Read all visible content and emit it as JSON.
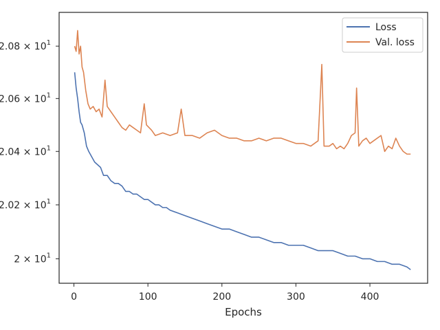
{
  "chart_data": {
    "type": "line",
    "title": "",
    "xlabel": "Epochs",
    "ylabel": "",
    "xlim": [
      -20,
      478
    ],
    "ylim": [
      19.91,
      20.93
    ],
    "yscale": "log",
    "x_ticks": [
      {
        "value": 0,
        "label": "0"
      },
      {
        "value": 100,
        "label": "100"
      },
      {
        "value": 200,
        "label": "200"
      },
      {
        "value": 300,
        "label": "300"
      },
      {
        "value": 400,
        "label": "400"
      }
    ],
    "y_ticks": [
      {
        "value": 20.0,
        "mantissa": "2",
        "exponent": "1"
      },
      {
        "value": 20.2,
        "mantissa": "2.02",
        "exponent": "1"
      },
      {
        "value": 20.4,
        "mantissa": "2.04",
        "exponent": "1"
      },
      {
        "value": 20.6,
        "mantissa": "2.06",
        "exponent": "1"
      },
      {
        "value": 20.8,
        "mantissa": "2.08",
        "exponent": "1"
      }
    ],
    "legend": {
      "position": "top-right"
    },
    "series": [
      {
        "name": "Loss",
        "color": "#4c72b0",
        "points": [
          [
            1,
            20.7
          ],
          [
            3,
            20.64
          ],
          [
            5,
            20.6
          ],
          [
            7,
            20.55
          ],
          [
            9,
            20.51
          ],
          [
            11,
            20.5
          ],
          [
            14,
            20.47
          ],
          [
            17,
            20.42
          ],
          [
            20,
            20.4
          ],
          [
            24,
            20.38
          ],
          [
            28,
            20.36
          ],
          [
            32,
            20.35
          ],
          [
            36,
            20.34
          ],
          [
            40,
            20.31
          ],
          [
            45,
            20.31
          ],
          [
            50,
            20.29
          ],
          [
            55,
            20.28
          ],
          [
            60,
            20.28
          ],
          [
            65,
            20.27
          ],
          [
            70,
            20.25
          ],
          [
            75,
            20.25
          ],
          [
            80,
            20.24
          ],
          [
            85,
            20.24
          ],
          [
            90,
            20.23
          ],
          [
            95,
            20.22
          ],
          [
            100,
            20.22
          ],
          [
            105,
            20.21
          ],
          [
            110,
            20.2
          ],
          [
            115,
            20.2
          ],
          [
            120,
            20.19
          ],
          [
            125,
            20.19
          ],
          [
            130,
            20.18
          ],
          [
            140,
            20.17
          ],
          [
            150,
            20.16
          ],
          [
            160,
            20.15
          ],
          [
            170,
            20.14
          ],
          [
            180,
            20.13
          ],
          [
            190,
            20.12
          ],
          [
            200,
            20.11
          ],
          [
            210,
            20.11
          ],
          [
            220,
            20.1
          ],
          [
            230,
            20.09
          ],
          [
            240,
            20.08
          ],
          [
            250,
            20.08
          ],
          [
            260,
            20.07
          ],
          [
            270,
            20.06
          ],
          [
            280,
            20.06
          ],
          [
            290,
            20.05
          ],
          [
            300,
            20.05
          ],
          [
            310,
            20.05
          ],
          [
            320,
            20.04
          ],
          [
            330,
            20.03
          ],
          [
            340,
            20.03
          ],
          [
            350,
            20.03
          ],
          [
            360,
            20.02
          ],
          [
            370,
            20.01
          ],
          [
            380,
            20.01
          ],
          [
            390,
            20.0
          ],
          [
            400,
            20.0
          ],
          [
            410,
            19.99
          ],
          [
            420,
            19.99
          ],
          [
            430,
            19.98
          ],
          [
            440,
            19.98
          ],
          [
            450,
            19.97
          ],
          [
            455,
            19.96
          ]
        ]
      },
      {
        "name": "Val. loss",
        "color": "#dd8452",
        "points": [
          [
            1,
            20.8
          ],
          [
            3,
            20.78
          ],
          [
            5,
            20.86
          ],
          [
            7,
            20.77
          ],
          [
            9,
            20.8
          ],
          [
            11,
            20.72
          ],
          [
            13,
            20.7
          ],
          [
            16,
            20.63
          ],
          [
            19,
            20.58
          ],
          [
            22,
            20.56
          ],
          [
            26,
            20.57
          ],
          [
            30,
            20.55
          ],
          [
            34,
            20.56
          ],
          [
            38,
            20.53
          ],
          [
            42,
            20.67
          ],
          [
            45,
            20.57
          ],
          [
            50,
            20.55
          ],
          [
            55,
            20.53
          ],
          [
            60,
            20.51
          ],
          [
            65,
            20.49
          ],
          [
            70,
            20.48
          ],
          [
            75,
            20.5
          ],
          [
            80,
            20.49
          ],
          [
            85,
            20.48
          ],
          [
            90,
            20.47
          ],
          [
            95,
            20.58
          ],
          [
            98,
            20.5
          ],
          [
            105,
            20.48
          ],
          [
            110,
            20.46
          ],
          [
            120,
            20.47
          ],
          [
            130,
            20.46
          ],
          [
            140,
            20.47
          ],
          [
            145,
            20.56
          ],
          [
            150,
            20.46
          ],
          [
            160,
            20.46
          ],
          [
            170,
            20.45
          ],
          [
            180,
            20.47
          ],
          [
            190,
            20.48
          ],
          [
            200,
            20.46
          ],
          [
            210,
            20.45
          ],
          [
            220,
            20.45
          ],
          [
            230,
            20.44
          ],
          [
            240,
            20.44
          ],
          [
            250,
            20.45
          ],
          [
            260,
            20.44
          ],
          [
            270,
            20.45
          ],
          [
            280,
            20.45
          ],
          [
            290,
            20.44
          ],
          [
            300,
            20.43
          ],
          [
            310,
            20.43
          ],
          [
            320,
            20.42
          ],
          [
            330,
            20.44
          ],
          [
            335,
            20.73
          ],
          [
            338,
            20.42
          ],
          [
            345,
            20.42
          ],
          [
            350,
            20.43
          ],
          [
            355,
            20.41
          ],
          [
            360,
            20.42
          ],
          [
            365,
            20.41
          ],
          [
            370,
            20.43
          ],
          [
            375,
            20.46
          ],
          [
            380,
            20.47
          ],
          [
            382,
            20.64
          ],
          [
            385,
            20.42
          ],
          [
            390,
            20.44
          ],
          [
            395,
            20.45
          ],
          [
            400,
            20.43
          ],
          [
            405,
            20.44
          ],
          [
            410,
            20.45
          ],
          [
            415,
            20.46
          ],
          [
            420,
            20.4
          ],
          [
            425,
            20.42
          ],
          [
            430,
            20.41
          ],
          [
            435,
            20.45
          ],
          [
            440,
            20.42
          ],
          [
            445,
            20.4
          ],
          [
            450,
            20.39
          ],
          [
            455,
            20.39
          ]
        ]
      }
    ]
  }
}
